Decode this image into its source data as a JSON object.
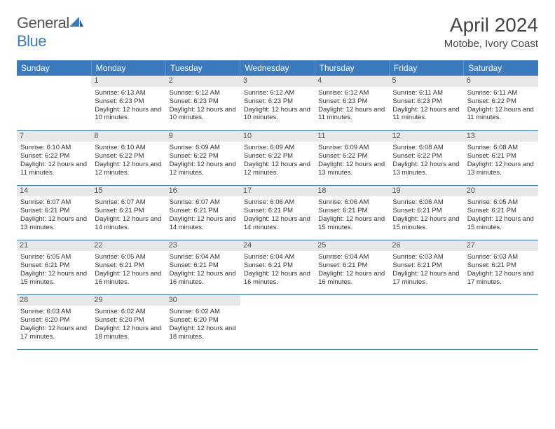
{
  "brand": {
    "word1": "General",
    "word2": "Blue"
  },
  "title": "April 2024",
  "location": "Motobe, Ivory Coast",
  "colors": {
    "header_bg": "#3b7abf",
    "header_text": "#ffffff",
    "daynum_bg": "#e8e8e8",
    "border": "#3b7abf",
    "logo_blue": "#3b7abf",
    "logo_gray": "#555555",
    "body_text": "#333333"
  },
  "typography": {
    "title_fontsize": 28,
    "location_fontsize": 15,
    "header_fontsize": 12,
    "cell_fontsize": 9.5,
    "daynum_fontsize": 11
  },
  "day_headers": [
    "Sunday",
    "Monday",
    "Tuesday",
    "Wednesday",
    "Thursday",
    "Friday",
    "Saturday"
  ],
  "weeks": [
    [
      {
        "n": "",
        "sr": "",
        "ss": "",
        "dl": ""
      },
      {
        "n": "1",
        "sr": "Sunrise: 6:13 AM",
        "ss": "Sunset: 6:23 PM",
        "dl": "Daylight: 12 hours and 10 minutes."
      },
      {
        "n": "2",
        "sr": "Sunrise: 6:12 AM",
        "ss": "Sunset: 6:23 PM",
        "dl": "Daylight: 12 hours and 10 minutes."
      },
      {
        "n": "3",
        "sr": "Sunrise: 6:12 AM",
        "ss": "Sunset: 6:23 PM",
        "dl": "Daylight: 12 hours and 10 minutes."
      },
      {
        "n": "4",
        "sr": "Sunrise: 6:12 AM",
        "ss": "Sunset: 6:23 PM",
        "dl": "Daylight: 12 hours and 11 minutes."
      },
      {
        "n": "5",
        "sr": "Sunrise: 6:11 AM",
        "ss": "Sunset: 6:23 PM",
        "dl": "Daylight: 12 hours and 11 minutes."
      },
      {
        "n": "6",
        "sr": "Sunrise: 6:11 AM",
        "ss": "Sunset: 6:22 PM",
        "dl": "Daylight: 12 hours and 11 minutes."
      }
    ],
    [
      {
        "n": "7",
        "sr": "Sunrise: 6:10 AM",
        "ss": "Sunset: 6:22 PM",
        "dl": "Daylight: 12 hours and 11 minutes."
      },
      {
        "n": "8",
        "sr": "Sunrise: 6:10 AM",
        "ss": "Sunset: 6:22 PM",
        "dl": "Daylight: 12 hours and 12 minutes."
      },
      {
        "n": "9",
        "sr": "Sunrise: 6:09 AM",
        "ss": "Sunset: 6:22 PM",
        "dl": "Daylight: 12 hours and 12 minutes."
      },
      {
        "n": "10",
        "sr": "Sunrise: 6:09 AM",
        "ss": "Sunset: 6:22 PM",
        "dl": "Daylight: 12 hours and 12 minutes."
      },
      {
        "n": "11",
        "sr": "Sunrise: 6:09 AM",
        "ss": "Sunset: 6:22 PM",
        "dl": "Daylight: 12 hours and 13 minutes."
      },
      {
        "n": "12",
        "sr": "Sunrise: 6:08 AM",
        "ss": "Sunset: 6:22 PM",
        "dl": "Daylight: 12 hours and 13 minutes."
      },
      {
        "n": "13",
        "sr": "Sunrise: 6:08 AM",
        "ss": "Sunset: 6:21 PM",
        "dl": "Daylight: 12 hours and 13 minutes."
      }
    ],
    [
      {
        "n": "14",
        "sr": "Sunrise: 6:07 AM",
        "ss": "Sunset: 6:21 PM",
        "dl": "Daylight: 12 hours and 13 minutes."
      },
      {
        "n": "15",
        "sr": "Sunrise: 6:07 AM",
        "ss": "Sunset: 6:21 PM",
        "dl": "Daylight: 12 hours and 14 minutes."
      },
      {
        "n": "16",
        "sr": "Sunrise: 6:07 AM",
        "ss": "Sunset: 6:21 PM",
        "dl": "Daylight: 12 hours and 14 minutes."
      },
      {
        "n": "17",
        "sr": "Sunrise: 6:06 AM",
        "ss": "Sunset: 6:21 PM",
        "dl": "Daylight: 12 hours and 14 minutes."
      },
      {
        "n": "18",
        "sr": "Sunrise: 6:06 AM",
        "ss": "Sunset: 6:21 PM",
        "dl": "Daylight: 12 hours and 15 minutes."
      },
      {
        "n": "19",
        "sr": "Sunrise: 6:06 AM",
        "ss": "Sunset: 6:21 PM",
        "dl": "Daylight: 12 hours and 15 minutes."
      },
      {
        "n": "20",
        "sr": "Sunrise: 6:05 AM",
        "ss": "Sunset: 6:21 PM",
        "dl": "Daylight: 12 hours and 15 minutes."
      }
    ],
    [
      {
        "n": "21",
        "sr": "Sunrise: 6:05 AM",
        "ss": "Sunset: 6:21 PM",
        "dl": "Daylight: 12 hours and 15 minutes."
      },
      {
        "n": "22",
        "sr": "Sunrise: 6:05 AM",
        "ss": "Sunset: 6:21 PM",
        "dl": "Daylight: 12 hours and 16 minutes."
      },
      {
        "n": "23",
        "sr": "Sunrise: 6:04 AM",
        "ss": "Sunset: 6:21 PM",
        "dl": "Daylight: 12 hours and 16 minutes."
      },
      {
        "n": "24",
        "sr": "Sunrise: 6:04 AM",
        "ss": "Sunset: 6:21 PM",
        "dl": "Daylight: 12 hours and 16 minutes."
      },
      {
        "n": "25",
        "sr": "Sunrise: 6:04 AM",
        "ss": "Sunset: 6:21 PM",
        "dl": "Daylight: 12 hours and 16 minutes."
      },
      {
        "n": "26",
        "sr": "Sunrise: 6:03 AM",
        "ss": "Sunset: 6:21 PM",
        "dl": "Daylight: 12 hours and 17 minutes."
      },
      {
        "n": "27",
        "sr": "Sunrise: 6:03 AM",
        "ss": "Sunset: 6:21 PM",
        "dl": "Daylight: 12 hours and 17 minutes."
      }
    ],
    [
      {
        "n": "28",
        "sr": "Sunrise: 6:03 AM",
        "ss": "Sunset: 6:20 PM",
        "dl": "Daylight: 12 hours and 17 minutes."
      },
      {
        "n": "29",
        "sr": "Sunrise: 6:02 AM",
        "ss": "Sunset: 6:20 PM",
        "dl": "Daylight: 12 hours and 18 minutes."
      },
      {
        "n": "30",
        "sr": "Sunrise: 6:02 AM",
        "ss": "Sunset: 6:20 PM",
        "dl": "Daylight: 12 hours and 18 minutes."
      },
      {
        "n": "",
        "sr": "",
        "ss": "",
        "dl": ""
      },
      {
        "n": "",
        "sr": "",
        "ss": "",
        "dl": ""
      },
      {
        "n": "",
        "sr": "",
        "ss": "",
        "dl": ""
      },
      {
        "n": "",
        "sr": "",
        "ss": "",
        "dl": ""
      }
    ]
  ]
}
